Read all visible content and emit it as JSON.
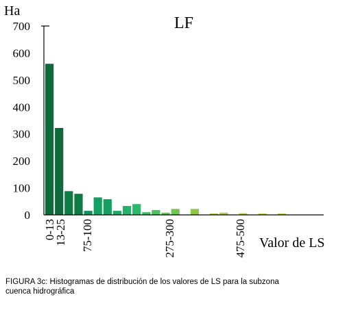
{
  "chart_data": {
    "type": "bar",
    "title": "LF",
    "ylabel": "Ha",
    "xlabel": "Valor de LS",
    "ylim": [
      0,
      700
    ],
    "yticks": [
      0,
      100,
      200,
      300,
      400,
      500,
      600,
      700
    ],
    "x_tick_labels": [
      "0-13",
      "13-25",
      "75-100",
      "275-300",
      "475-500"
    ],
    "values": [
      560,
      322,
      88,
      78,
      15,
      65,
      58,
      15,
      33,
      40,
      10,
      18,
      8,
      22,
      0,
      22,
      0,
      5,
      8,
      0,
      6,
      0,
      5,
      0,
      5
    ],
    "colors": [
      "#0f6a3b",
      "#0f6a3b",
      "#107a44",
      "#107a44",
      "#12925a",
      "#14a060",
      "#14a060",
      "#1aa866",
      "#22b36a",
      "#2cb86a",
      "#3cbd64",
      "#4cc160",
      "#5cc45a",
      "#70c553",
      "#7fc64d",
      "#8dc846",
      "#9ac842",
      "#a5c93e",
      "#b0ca3b",
      "#baca38",
      "#c1ca36",
      "#c6ca35",
      "#c9ca34",
      "#cbca33",
      "#ccca33"
    ]
  },
  "caption": {
    "line1": "FIGURA 3c: Histogramas de distribución de los valores de LS para la subzona",
    "line2": "cuenca hidrográfica"
  }
}
